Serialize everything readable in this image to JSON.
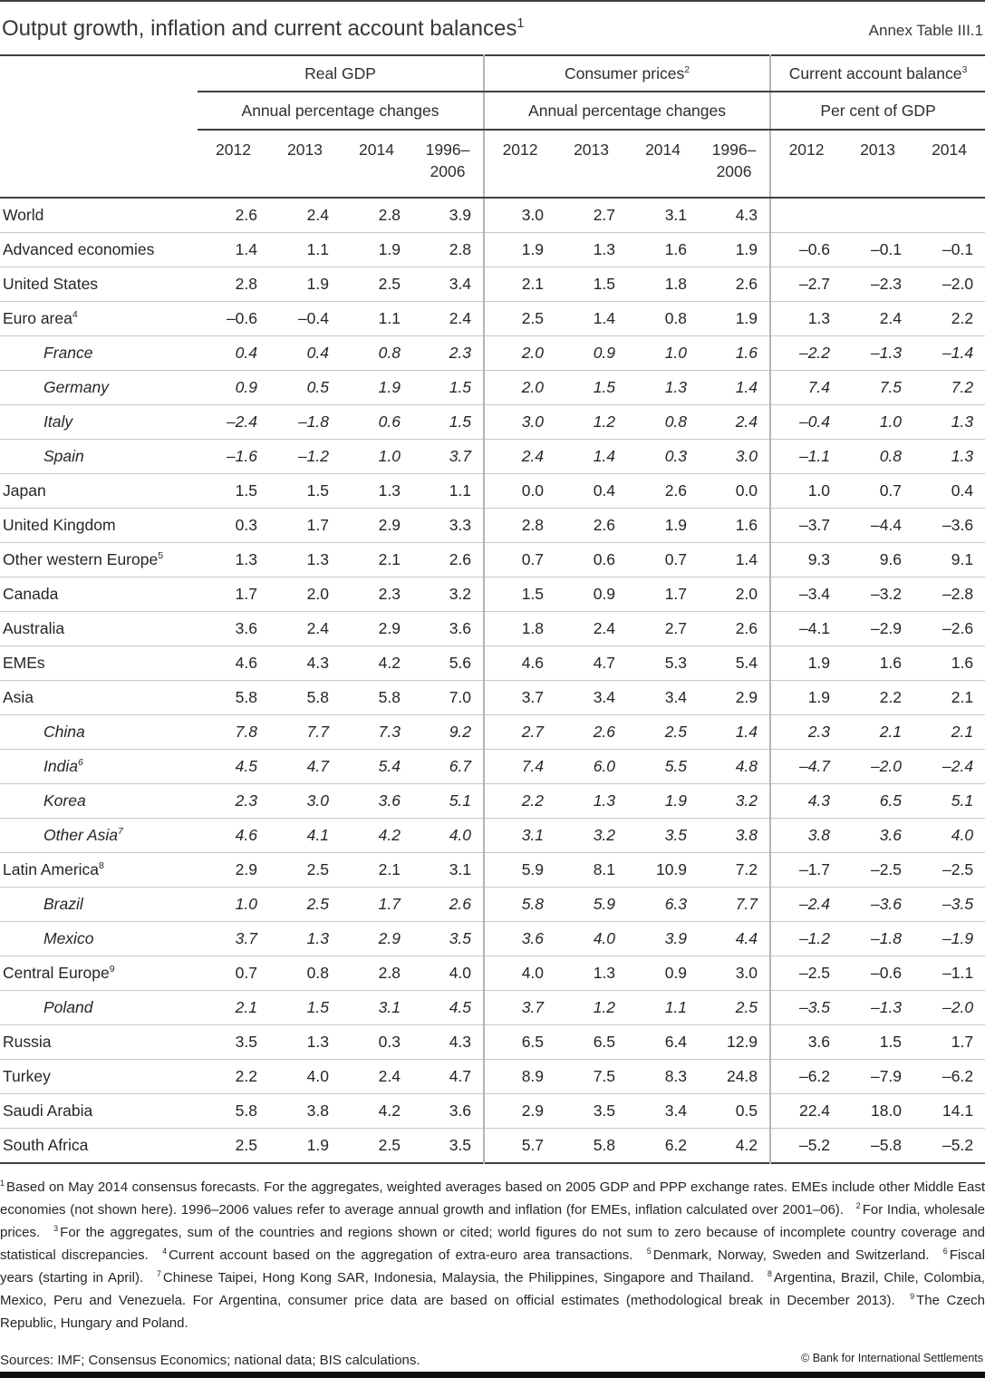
{
  "page": {
    "title": "Output growth, inflation and current account balances",
    "title_sup": "1",
    "annex_label": "Annex Table III.1",
    "copyright": "© Bank for International Settlements"
  },
  "table": {
    "groups": [
      {
        "label": "Real GDP",
        "sup": "",
        "subtitle": "Annual percentage changes",
        "years": [
          "2012",
          "2013",
          "2014",
          "1996–2006"
        ]
      },
      {
        "label": "Consumer prices",
        "sup": "2",
        "subtitle": "Annual percentage changes",
        "years": [
          "2012",
          "2013",
          "2014",
          "1996–2006"
        ]
      },
      {
        "label": "Current account balance",
        "sup": "3",
        "subtitle": "Per cent of GDP",
        "years": [
          "2012",
          "2013",
          "2014"
        ]
      }
    ],
    "rows": [
      {
        "label": "World",
        "sup": "",
        "style": "bold",
        "values": [
          "2.6",
          "2.4",
          "2.8",
          "3.9",
          "3.0",
          "2.7",
          "3.1",
          "4.3",
          "",
          "",
          ""
        ]
      },
      {
        "label": "Advanced economies",
        "sup": "",
        "style": "bold",
        "values": [
          "1.4",
          "1.1",
          "1.9",
          "2.8",
          "1.9",
          "1.3",
          "1.6",
          "1.9",
          "–0.6",
          "–0.1",
          "–0.1"
        ]
      },
      {
        "label": "United States",
        "sup": "",
        "style": "",
        "values": [
          "2.8",
          "1.9",
          "2.5",
          "3.4",
          "2.1",
          "1.5",
          "1.8",
          "2.6",
          "–2.7",
          "–2.3",
          "–2.0"
        ]
      },
      {
        "label": "Euro area",
        "sup": "4",
        "style": "",
        "values": [
          "–0.6",
          "–0.4",
          "1.1",
          "2.4",
          "2.5",
          "1.4",
          "0.8",
          "1.9",
          "1.3",
          "2.4",
          "2.2"
        ]
      },
      {
        "label": "France",
        "sup": "",
        "style": "italic",
        "values": [
          "0.4",
          "0.4",
          "0.8",
          "2.3",
          "2.0",
          "0.9",
          "1.0",
          "1.6",
          "–2.2",
          "–1.3",
          "–1.4"
        ]
      },
      {
        "label": "Germany",
        "sup": "",
        "style": "italic",
        "values": [
          "0.9",
          "0.5",
          "1.9",
          "1.5",
          "2.0",
          "1.5",
          "1.3",
          "1.4",
          "7.4",
          "7.5",
          "7.2"
        ]
      },
      {
        "label": "Italy",
        "sup": "",
        "style": "italic",
        "values": [
          "–2.4",
          "–1.8",
          "0.6",
          "1.5",
          "3.0",
          "1.2",
          "0.8",
          "2.4",
          "–0.4",
          "1.0",
          "1.3"
        ]
      },
      {
        "label": "Spain",
        "sup": "",
        "style": "italic",
        "values": [
          "–1.6",
          "–1.2",
          "1.0",
          "3.7",
          "2.4",
          "1.4",
          "0.3",
          "3.0",
          "–1.1",
          "0.8",
          "1.3"
        ]
      },
      {
        "label": "Japan",
        "sup": "",
        "style": "",
        "values": [
          "1.5",
          "1.5",
          "1.3",
          "1.1",
          "0.0",
          "0.4",
          "2.6",
          "0.0",
          "1.0",
          "0.7",
          "0.4"
        ]
      },
      {
        "label": "United Kingdom",
        "sup": "",
        "style": "",
        "values": [
          "0.3",
          "1.7",
          "2.9",
          "3.3",
          "2.8",
          "2.6",
          "1.9",
          "1.6",
          "–3.7",
          "–4.4",
          "–3.6"
        ]
      },
      {
        "label": "Other western Europe",
        "sup": "5",
        "style": "",
        "values": [
          "1.3",
          "1.3",
          "2.1",
          "2.6",
          "0.7",
          "0.6",
          "0.7",
          "1.4",
          "9.3",
          "9.6",
          "9.1"
        ]
      },
      {
        "label": "Canada",
        "sup": "",
        "style": "",
        "values": [
          "1.7",
          "2.0",
          "2.3",
          "3.2",
          "1.5",
          "0.9",
          "1.7",
          "2.0",
          "–3.4",
          "–3.2",
          "–2.8"
        ]
      },
      {
        "label": "Australia",
        "sup": "",
        "style": "",
        "values": [
          "3.6",
          "2.4",
          "2.9",
          "3.6",
          "1.8",
          "2.4",
          "2.7",
          "2.6",
          "–4.1",
          "–2.9",
          "–2.6"
        ]
      },
      {
        "label": "EMEs",
        "sup": "",
        "style": "bold",
        "values": [
          "4.6",
          "4.3",
          "4.2",
          "5.6",
          "4.6",
          "4.7",
          "5.3",
          "5.4",
          "1.9",
          "1.6",
          "1.6"
        ]
      },
      {
        "label": "Asia",
        "sup": "",
        "style": "",
        "values": [
          "5.8",
          "5.8",
          "5.8",
          "7.0",
          "3.7",
          "3.4",
          "3.4",
          "2.9",
          "1.9",
          "2.2",
          "2.1"
        ]
      },
      {
        "label": "China",
        "sup": "",
        "style": "italic",
        "values": [
          "7.8",
          "7.7",
          "7.3",
          "9.2",
          "2.7",
          "2.6",
          "2.5",
          "1.4",
          "2.3",
          "2.1",
          "2.1"
        ]
      },
      {
        "label": "India",
        "sup": "6",
        "style": "italic",
        "values": [
          "4.5",
          "4.7",
          "5.4",
          "6.7",
          "7.4",
          "6.0",
          "5.5",
          "4.8",
          "–4.7",
          "–2.0",
          "–2.4"
        ]
      },
      {
        "label": "Korea",
        "sup": "",
        "style": "italic",
        "values": [
          "2.3",
          "3.0",
          "3.6",
          "5.1",
          "2.2",
          "1.3",
          "1.9",
          "3.2",
          "4.3",
          "6.5",
          "5.1"
        ]
      },
      {
        "label": "Other Asia",
        "sup": "7",
        "style": "italic",
        "values": [
          "4.6",
          "4.1",
          "4.2",
          "4.0",
          "3.1",
          "3.2",
          "3.5",
          "3.8",
          "3.8",
          "3.6",
          "4.0"
        ]
      },
      {
        "label": "Latin America",
        "sup": "8",
        "style": "",
        "values": [
          "2.9",
          "2.5",
          "2.1",
          "3.1",
          "5.9",
          "8.1",
          "10.9",
          "7.2",
          "–1.7",
          "–2.5",
          "–2.5"
        ]
      },
      {
        "label": "Brazil",
        "sup": "",
        "style": "italic",
        "values": [
          "1.0",
          "2.5",
          "1.7",
          "2.6",
          "5.8",
          "5.9",
          "6.3",
          "7.7",
          "–2.4",
          "–3.6",
          "–3.5"
        ]
      },
      {
        "label": "Mexico",
        "sup": "",
        "style": "italic",
        "values": [
          "3.7",
          "1.3",
          "2.9",
          "3.5",
          "3.6",
          "4.0",
          "3.9",
          "4.4",
          "–1.2",
          "–1.8",
          "–1.9"
        ]
      },
      {
        "label": "Central Europe",
        "sup": "9",
        "style": "",
        "values": [
          "0.7",
          "0.8",
          "2.8",
          "4.0",
          "4.0",
          "1.3",
          "0.9",
          "3.0",
          "–2.5",
          "–0.6",
          "–1.1"
        ]
      },
      {
        "label": "Poland",
        "sup": "",
        "style": "italic",
        "values": [
          "2.1",
          "1.5",
          "3.1",
          "4.5",
          "3.7",
          "1.2",
          "1.1",
          "2.5",
          "–3.5",
          "–1.3",
          "–2.0"
        ]
      },
      {
        "label": "Russia",
        "sup": "",
        "style": "",
        "values": [
          "3.5",
          "1.3",
          "0.3",
          "4.3",
          "6.5",
          "6.5",
          "6.4",
          "12.9",
          "3.6",
          "1.5",
          "1.7"
        ]
      },
      {
        "label": "Turkey",
        "sup": "",
        "style": "",
        "values": [
          "2.2",
          "4.0",
          "2.4",
          "4.7",
          "8.9",
          "7.5",
          "8.3",
          "24.8",
          "–6.2",
          "–7.9",
          "–6.2"
        ]
      },
      {
        "label": "Saudi Arabia",
        "sup": "",
        "style": "",
        "values": [
          "5.8",
          "3.8",
          "4.2",
          "3.6",
          "2.9",
          "3.5",
          "3.4",
          "0.5",
          "22.4",
          "18.0",
          "14.1"
        ]
      },
      {
        "label": "South Africa",
        "sup": "",
        "style": "",
        "values": [
          "2.5",
          "1.9",
          "2.5",
          "3.5",
          "5.7",
          "5.8",
          "6.2",
          "4.2",
          "–5.2",
          "–5.8",
          "–5.2"
        ]
      }
    ]
  },
  "footnotes": [
    {
      "sup": "1",
      "text": "Based on May 2014 consensus forecasts. For the aggregates, weighted averages based on 2005 GDP and PPP exchange rates. EMEs include other Middle East economies (not shown here). 1996–2006 values refer to average annual growth and inflation (for EMEs, inflation calculated over 2001–06)."
    },
    {
      "sup": "2",
      "text": "For India, wholesale prices."
    },
    {
      "sup": "3",
      "text": "For the aggregates, sum of the countries and regions shown or cited; world figures do not sum to zero because of incomplete country coverage and statistical discrepancies."
    },
    {
      "sup": "4",
      "text": "Current account based on the aggregation of extra-euro area transactions."
    },
    {
      "sup": "5",
      "text": "Denmark, Norway, Sweden and Switzerland."
    },
    {
      "sup": "6",
      "text": "Fiscal years (starting in April)."
    },
    {
      "sup": "7",
      "text": "Chinese Taipei, Hong Kong SAR, Indonesia, Malaysia, the Philippines, Singapore and Thailand."
    },
    {
      "sup": "8",
      "text": "Argentina, Brazil, Chile, Colombia, Mexico, Peru and Venezuela. For Argentina, consumer price data are based on official estimates (methodological break in December 2013)."
    },
    {
      "sup": "9",
      "text": "The Czech Republic, Hungary and Poland."
    }
  ],
  "sources": "Sources: IMF; Consensus Economics; national data; BIS calculations."
}
